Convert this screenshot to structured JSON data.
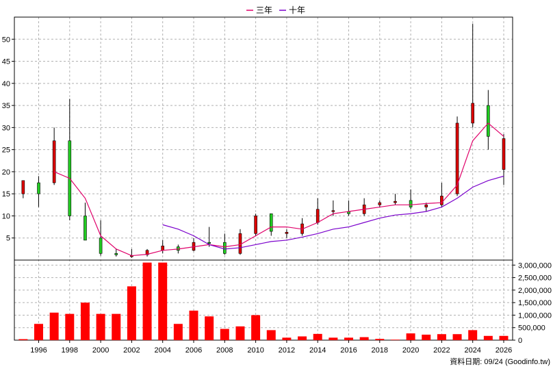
{
  "chart_data": {
    "type": "candlestick+bar",
    "legend": [
      {
        "name": "三年",
        "color": "#e0006a"
      },
      {
        "name": "十年",
        "color": "#7a00cc"
      }
    ],
    "price_axis": {
      "min": 0,
      "max": 55,
      "ticks": [
        5,
        10,
        15,
        20,
        25,
        30,
        35,
        40,
        45,
        50
      ]
    },
    "volume_axis": {
      "min": 0,
      "max": 3200000,
      "ticks": [
        0,
        500000,
        1000000,
        1500000,
        2000000,
        2500000,
        3000000
      ],
      "tick_labels": [
        "0",
        "500,000",
        "1,000,000",
        "1,500,000",
        "2,000,000",
        "2,500,000",
        "3,000,000"
      ]
    },
    "x_axis": {
      "ticks": [
        "1996",
        "1998",
        "2000",
        "2002",
        "2004",
        "2006",
        "2008",
        "2010",
        "2012",
        "2014",
        "2016",
        "2018",
        "2020",
        "2022",
        "2024",
        "2026"
      ]
    },
    "candles": [
      {
        "year": 1995,
        "open": 15,
        "close": 18,
        "high": 18,
        "low": 14
      },
      {
        "year": 1996,
        "open": 17.5,
        "close": 15,
        "high": 19,
        "low": 12
      },
      {
        "year": 1997,
        "open": 17.5,
        "close": 27,
        "high": 30,
        "low": 17
      },
      {
        "year": 1998,
        "open": 27,
        "close": 10,
        "high": 36.5,
        "low": 9
      },
      {
        "year": 1999,
        "open": 10,
        "close": 4.5,
        "high": 13,
        "low": 4.5
      },
      {
        "year": 2000,
        "open": 5,
        "close": 1.5,
        "high": 9,
        "low": 1
      },
      {
        "year": 2001,
        "open": 1.5,
        "close": 1.2,
        "high": 2.5,
        "low": 0.8
      },
      {
        "year": 2002,
        "open": 1,
        "close": 1,
        "high": 2.5,
        "low": 0.5
      },
      {
        "year": 2003,
        "open": 1.2,
        "close": 2.2,
        "high": 2.5,
        "low": 0.8
      },
      {
        "year": 2004,
        "open": 2.2,
        "close": 3.2,
        "high": 4.5,
        "low": 1.5
      },
      {
        "year": 2005,
        "open": 3,
        "close": 2.2,
        "high": 3.5,
        "low": 1.5
      },
      {
        "year": 2006,
        "open": 2.2,
        "close": 4,
        "high": 5,
        "low": 2
      },
      {
        "year": 2007,
        "open": 4,
        "close": 3.8,
        "high": 7.5,
        "low": 3
      },
      {
        "year": 2008,
        "open": 4,
        "close": 1.5,
        "high": 6,
        "low": 1.2
      },
      {
        "year": 2009,
        "open": 1.5,
        "close": 6,
        "high": 7,
        "low": 1.2
      },
      {
        "year": 2010,
        "open": 6,
        "close": 10,
        "high": 10.5,
        "low": 5.5
      },
      {
        "year": 2011,
        "open": 10.5,
        "close": 6.5,
        "high": 10.5,
        "low": 5.5
      },
      {
        "year": 2012,
        "open": 6,
        "close": 6.3,
        "high": 7,
        "low": 5
      },
      {
        "year": 2013,
        "open": 6,
        "close": 8.2,
        "high": 9.5,
        "low": 5.5
      },
      {
        "year": 2014,
        "open": 8.5,
        "close": 11.5,
        "high": 14,
        "low": 8
      },
      {
        "year": 2015,
        "open": 11,
        "close": 11.2,
        "high": 13.5,
        "low": 10
      },
      {
        "year": 2016,
        "open": 11,
        "close": 10.5,
        "high": 13.5,
        "low": 10
      },
      {
        "year": 2017,
        "open": 10.5,
        "close": 12.5,
        "high": 14,
        "low": 10
      },
      {
        "year": 2018,
        "open": 12.5,
        "close": 13,
        "high": 13.5,
        "low": 12
      },
      {
        "year": 2019,
        "open": 13,
        "close": 13.3,
        "high": 15,
        "low": 12.5
      },
      {
        "year": 2020,
        "open": 13.5,
        "close": 12,
        "high": 16,
        "low": 11.5
      },
      {
        "year": 2021,
        "open": 12,
        "close": 12.5,
        "high": 13,
        "low": 11
      },
      {
        "year": 2022,
        "open": 12.5,
        "close": 14.5,
        "high": 17.5,
        "low": 12
      },
      {
        "year": 2023,
        "open": 15,
        "close": 31,
        "high": 32.5,
        "low": 14.5
      },
      {
        "year": 2024,
        "open": 31,
        "close": 35.5,
        "high": 53.5,
        "low": 30
      },
      {
        "year": 2025,
        "open": 35,
        "close": 28,
        "high": 38.5,
        "low": 25
      },
      {
        "year": 2026,
        "open": 20.5,
        "close": 27.5,
        "high": 28.5,
        "low": 17
      }
    ],
    "series": [
      {
        "name": "三年",
        "color": "#e0006a",
        "x": [
          1997,
          1998,
          1999,
          2000,
          2001,
          2002,
          2003,
          2004,
          2005,
          2006,
          2007,
          2008,
          2009,
          2010,
          2011,
          2012,
          2013,
          2014,
          2015,
          2016,
          2017,
          2018,
          2019,
          2020,
          2021,
          2022,
          2023,
          2024,
          2025,
          2026
        ],
        "y": [
          20,
          18.5,
          14,
          5.5,
          2.5,
          1,
          1.3,
          2.2,
          2.5,
          3,
          3.5,
          3,
          3.5,
          5.5,
          7.5,
          7.5,
          7,
          8.5,
          10.5,
          11,
          11.5,
          12,
          12.5,
          12.5,
          12.8,
          13,
          17,
          27,
          31,
          28
        ]
      },
      {
        "name": "十年",
        "color": "#7a00cc",
        "x": [
          2004,
          2005,
          2006,
          2007,
          2008,
          2009,
          2010,
          2011,
          2012,
          2013,
          2014,
          2015,
          2016,
          2017,
          2018,
          2019,
          2020,
          2021,
          2022,
          2023,
          2024,
          2025,
          2026
        ],
        "y": [
          8,
          7,
          5.5,
          3.5,
          2.5,
          2.8,
          3.5,
          4.2,
          4.5,
          5.2,
          6,
          7,
          7.5,
          8.5,
          9.5,
          10.2,
          10.5,
          11,
          12,
          14,
          16.5,
          18,
          19
        ]
      }
    ],
    "volume": [
      {
        "year": 1995,
        "value": 40000
      },
      {
        "year": 1996,
        "value": 650000
      },
      {
        "year": 1997,
        "value": 1100000
      },
      {
        "year": 1998,
        "value": 1050000
      },
      {
        "year": 1999,
        "value": 1500000
      },
      {
        "year": 2000,
        "value": 1050000
      },
      {
        "year": 2001,
        "value": 1050000
      },
      {
        "year": 2002,
        "value": 2150000
      },
      {
        "year": 2003,
        "value": 3100000
      },
      {
        "year": 2004,
        "value": 3100000
      },
      {
        "year": 2005,
        "value": 650000
      },
      {
        "year": 2006,
        "value": 1180000
      },
      {
        "year": 2007,
        "value": 950000
      },
      {
        "year": 2008,
        "value": 450000
      },
      {
        "year": 2009,
        "value": 550000
      },
      {
        "year": 2010,
        "value": 1000000
      },
      {
        "year": 2011,
        "value": 400000
      },
      {
        "year": 2012,
        "value": 100000
      },
      {
        "year": 2013,
        "value": 150000
      },
      {
        "year": 2014,
        "value": 250000
      },
      {
        "year": 2015,
        "value": 100000
      },
      {
        "year": 2016,
        "value": 100000
      },
      {
        "year": 2017,
        "value": 120000
      },
      {
        "year": 2018,
        "value": 50000
      },
      {
        "year": 2019,
        "value": 20000
      },
      {
        "year": 2020,
        "value": 270000
      },
      {
        "year": 2021,
        "value": 220000
      },
      {
        "year": 2022,
        "value": 240000
      },
      {
        "year": 2023,
        "value": 240000
      },
      {
        "year": 2024,
        "value": 400000
      },
      {
        "year": 2025,
        "value": 170000
      },
      {
        "year": 2026,
        "value": 170000
      }
    ],
    "colors": {
      "up": "#dd0000",
      "down": "#22cc22",
      "volume": "#ff0000",
      "grid": "#b0b0b0"
    }
  },
  "footer": {
    "source": "資料日期: 09/24 (Goodinfo.tw)"
  }
}
